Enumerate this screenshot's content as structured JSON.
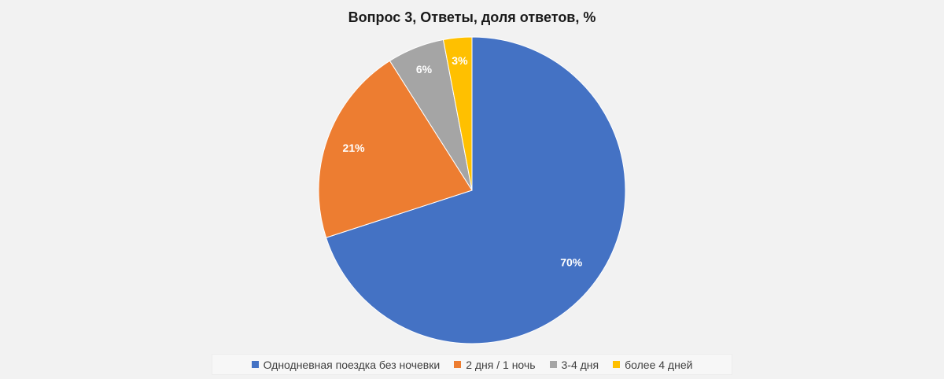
{
  "chart_data": {
    "type": "pie",
    "title": "Вопрос 3, Ответы, доля ответов, %",
    "categories": [
      "Однодневная поездка без ночевки",
      "2 дня / 1 ночь",
      "3-4 дня",
      "более 4 дней"
    ],
    "values": [
      70,
      21,
      6,
      3
    ],
    "value_labels": [
      "70%",
      "21%",
      "6%",
      "3%"
    ],
    "colors": [
      "#4472c4",
      "#ed7d31",
      "#a5a5a5",
      "#ffc000"
    ],
    "start_angle": "12 o'clock",
    "direction": "clockwise",
    "legend_position": "bottom"
  }
}
